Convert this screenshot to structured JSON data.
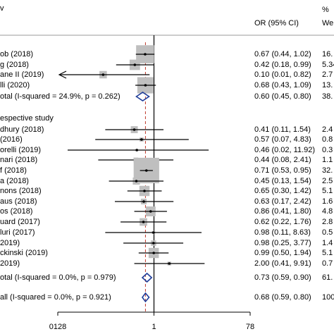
{
  "chart_data": {
    "type": "forest",
    "corner_label": "v",
    "ci_header": "OR (95% CI)",
    "weight_header_1": "%",
    "weight_header_2": "We",
    "xscale": "log",
    "xlim": [
      0.0128,
      78.1
    ],
    "xticks": [
      {
        "value": 0.0128,
        "label": "0128"
      },
      1,
      {
        "value": 78.1,
        "label": "78"
      }
    ],
    "box_color": "#bfbfbf",
    "diamond_color": "#1f3d99",
    "ref_line_color": "#c0392b",
    "rows": [
      {
        "type": "study",
        "label": "ob (2018)",
        "ci_text": "0.67 (0.44, 1.02)",
        "weight_label": "16.",
        "or": 0.67,
        "lo": 0.44,
        "hi": 1.02,
        "weight": 16
      },
      {
        "type": "study",
        "label": "g (2018)",
        "ci_text": "0.42 (0.18, 0.99)",
        "weight_label": "5.34",
        "or": 0.42,
        "lo": 0.18,
        "hi": 0.99,
        "weight": 5.34
      },
      {
        "type": "study",
        "label": "ane II (2019)",
        "ci_text": "0.10 (0.01, 0.82)",
        "weight_label": "2.7",
        "or": 0.1,
        "lo": 0.01,
        "hi": 0.82,
        "weight": 2.7
      },
      {
        "type": "study",
        "label": "lli (2020)",
        "ci_text": "0.68 (0.43, 1.09)",
        "weight_label": "13.",
        "or": 0.68,
        "lo": 0.43,
        "hi": 1.09,
        "weight": 13
      },
      {
        "type": "subtotal",
        "label": "otal  (I-squared = 24.9%, p = 0.262)",
        "ci_text": "0.60 (0.45, 0.80)",
        "weight_label": "38.",
        "or": 0.6,
        "lo": 0.45,
        "hi": 0.8
      },
      {
        "type": "heading",
        "label": "espective study"
      },
      {
        "type": "study",
        "label": "dhury (2018)",
        "ci_text": "0.41 (0.11, 1.54)",
        "weight_label": "2.4",
        "or": 0.41,
        "lo": 0.11,
        "hi": 1.54,
        "weight": 2.4
      },
      {
        "type": "study",
        "label": "(2016)",
        "ci_text": "0.57 (0.07, 4.83)",
        "weight_label": "0.8",
        "or": 0.57,
        "lo": 0.07,
        "hi": 4.83,
        "weight": 0.8
      },
      {
        "type": "study",
        "label": "orelli (2019)",
        "ci_text": "0.46 (0.02, 11.92)",
        "weight_label": "0.3",
        "or": 0.46,
        "lo": 0.02,
        "hi": 11.92,
        "weight": 0.3
      },
      {
        "type": "study",
        "label": "nari (2018)",
        "ci_text": "0.44 (0.08, 2.41)",
        "weight_label": "1.1",
        "or": 0.44,
        "lo": 0.08,
        "hi": 2.41,
        "weight": 1.1
      },
      {
        "type": "study",
        "label": "f (2018)",
        "ci_text": "0.71 (0.53, 0.95)",
        "weight_label": "32.",
        "or": 0.71,
        "lo": 0.53,
        "hi": 0.95,
        "weight": 32
      },
      {
        "type": "study",
        "label": "a (2018)",
        "ci_text": "0.45 (0.13, 1.54)",
        "weight_label": "2.5",
        "or": 0.45,
        "lo": 0.13,
        "hi": 1.54,
        "weight": 2.5
      },
      {
        "type": "study",
        "label": "nons (2018)",
        "ci_text": "0.65 (0.30, 1.42)",
        "weight_label": "5.1",
        "or": 0.65,
        "lo": 0.3,
        "hi": 1.42,
        "weight": 5.1
      },
      {
        "type": "study",
        "label": "aus (2018)",
        "ci_text": "0.63 (0.17, 2.42)",
        "weight_label": "1.6",
        "or": 0.63,
        "lo": 0.17,
        "hi": 2.42,
        "weight": 1.6
      },
      {
        "type": "study",
        "label": "os (2018)",
        "ci_text": "0.86 (0.41, 1.80)",
        "weight_label": "4.8",
        "or": 0.86,
        "lo": 0.41,
        "hi": 1.8,
        "weight": 4.8
      },
      {
        "type": "study",
        "label": "uard (2017)",
        "ci_text": "0.62 (0.22, 1.76)",
        "weight_label": "2.8",
        "or": 0.62,
        "lo": 0.22,
        "hi": 1.76,
        "weight": 2.8
      },
      {
        "type": "study",
        "label": "luri (2017)",
        "ci_text": "0.98 (0.11, 8.63)",
        "weight_label": "0.5",
        "or": 0.98,
        "lo": 0.11,
        "hi": 8.63,
        "weight": 0.5
      },
      {
        "type": "study",
        "label": "2019)",
        "ci_text": "0.98 (0.25, 3.77)",
        "weight_label": "1.4",
        "or": 0.98,
        "lo": 0.25,
        "hi": 3.77,
        "weight": 1.4
      },
      {
        "type": "study",
        "label": "ckinski (2019)",
        "ci_text": "0.99 (0.50, 1.94)",
        "weight_label": "5.1",
        "or": 0.99,
        "lo": 0.5,
        "hi": 1.94,
        "weight": 5.1
      },
      {
        "type": "study",
        "label": "2019)",
        "ci_text": "2.00 (0.41, 9.91)",
        "weight_label": "0.7",
        "or": 2.0,
        "lo": 0.41,
        "hi": 9.91,
        "weight": 0.7
      },
      {
        "type": "subtotal",
        "label": "otal  (I-squared = 0.0%, p = 0.979)",
        "ci_text": "0.73 (0.59, 0.90)",
        "weight_label": "61.",
        "or": 0.73,
        "lo": 0.59,
        "hi": 0.9
      }
    ],
    "overall": {
      "label": "all  (I-squared = 0.0%, p = 0.921)",
      "ci_text": "0.68 (0.59, 0.80)",
      "weight_label": "100",
      "or": 0.68,
      "lo": 0.59,
      "hi": 0.8
    }
  }
}
